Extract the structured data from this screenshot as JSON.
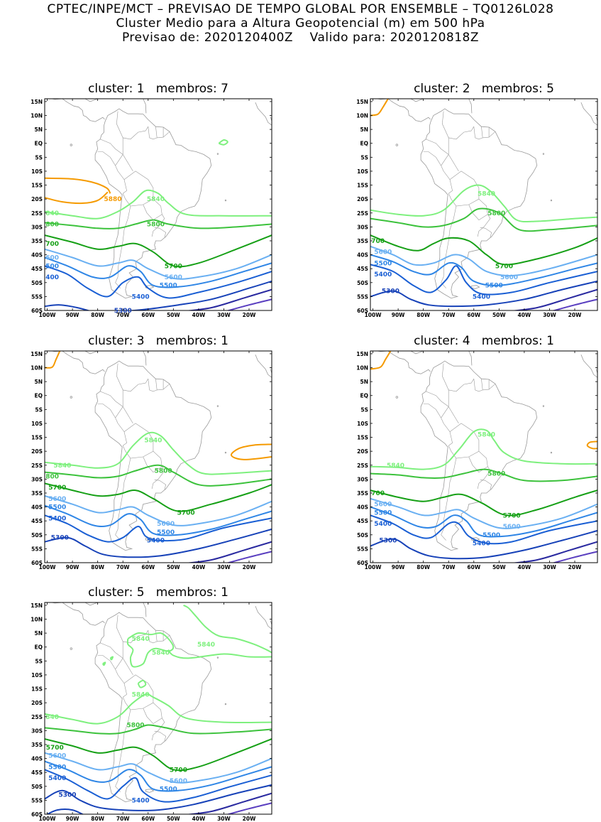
{
  "header": {
    "line1": "CPTEC/INPE/MCT – PREVISAO DE TEMPO GLOBAL POR ENSEMBLE – TQ0126L028",
    "line2": "Cluster Medio para a Altura Geopotencial (m) em 500 hPa",
    "line3": "Previsao de: 2020120400Z    Valido para: 2020120818Z"
  },
  "axes": {
    "lat_labels": [
      "15N",
      "10N",
      "5N",
      "EQ",
      "5S",
      "10S",
      "15S",
      "20S",
      "25S",
      "30S",
      "35S",
      "40S",
      "45S",
      "50S",
      "55S",
      "60S"
    ],
    "lon_labels": [
      "100W",
      "90W",
      "80W",
      "70W",
      "60W",
      "50W",
      "40W",
      "30W",
      "20W"
    ]
  },
  "colors": {
    "c5880": "#f59a00",
    "c5840": "#7ef07e",
    "c5800": "#3cc23c",
    "c5700": "#16a016",
    "c5600": "#6ab0f2",
    "c5500": "#2f86e6",
    "c5400": "#1a5fd4",
    "c5300": "#1742b8",
    "c5200": "#2a2aa0",
    "c5100": "#5a3fc0",
    "coast": "#9a9a9a"
  },
  "panels": [
    {
      "title": "cluster: 1   membros: 7",
      "labels": [
        {
          "text": "5880",
          "lon": -74,
          "lat": -20,
          "lev": "c5880"
        },
        {
          "text": "5840",
          "lon": -57,
          "lat": -20,
          "lev": "c5840"
        },
        {
          "text": "840",
          "lon": -98,
          "lat": -25,
          "lev": "c5840"
        },
        {
          "text": "5800",
          "lon": -57,
          "lat": -29,
          "lev": "c5800"
        },
        {
          "text": "800",
          "lon": -98,
          "lat": -29,
          "lev": "c5800"
        },
        {
          "text": "700",
          "lon": -98,
          "lat": -36,
          "lev": "c5700"
        },
        {
          "text": "5700",
          "lon": -50,
          "lat": -44,
          "lev": "c5700"
        },
        {
          "text": "600",
          "lon": -98,
          "lat": -41,
          "lev": "c5600"
        },
        {
          "text": "5600",
          "lon": -50,
          "lat": -48,
          "lev": "c5600"
        },
        {
          "text": "500",
          "lon": -98,
          "lat": -44,
          "lev": "c5500"
        },
        {
          "text": "5500",
          "lon": -52,
          "lat": -51,
          "lev": "c5500"
        },
        {
          "text": "400",
          "lon": -98,
          "lat": -48,
          "lev": "c5400"
        },
        {
          "text": "5400",
          "lon": -63,
          "lat": -55,
          "lev": "c5400"
        },
        {
          "text": "5300",
          "lon": -70,
          "lat": -60,
          "lev": "c5300"
        }
      ]
    },
    {
      "title": "cluster: 2   membros: 5",
      "labels": [
        {
          "text": "5840",
          "lon": -55,
          "lat": -18,
          "lev": "c5840"
        },
        {
          "text": "5800",
          "lon": -51,
          "lat": -25,
          "lev": "c5800"
        },
        {
          "text": "700",
          "lon": -98,
          "lat": -35,
          "lev": "c5700"
        },
        {
          "text": "5700",
          "lon": -48,
          "lat": -44,
          "lev": "c5700"
        },
        {
          "text": "5600",
          "lon": -96,
          "lat": -39,
          "lev": "c5600"
        },
        {
          "text": "5600",
          "lon": -46,
          "lat": -48,
          "lev": "c5600"
        },
        {
          "text": "5500",
          "lon": -96,
          "lat": -43,
          "lev": "c5500"
        },
        {
          "text": "5500",
          "lon": -52,
          "lat": -51,
          "lev": "c5500"
        },
        {
          "text": "5400",
          "lon": -96,
          "lat": -47,
          "lev": "c5400"
        },
        {
          "text": "5400",
          "lon": -57,
          "lat": -55,
          "lev": "c5400"
        },
        {
          "text": "5300",
          "lon": -93,
          "lat": -53,
          "lev": "c5300"
        }
      ]
    },
    {
      "title": "cluster: 3   membros: 1",
      "labels": [
        {
          "text": "5840",
          "lon": -58,
          "lat": -16,
          "lev": "c5840"
        },
        {
          "text": "5840",
          "lon": -94,
          "lat": -25,
          "lev": "c5840"
        },
        {
          "text": "5800",
          "lon": -54,
          "lat": -27,
          "lev": "c5800"
        },
        {
          "text": "800",
          "lon": -98,
          "lat": -29,
          "lev": "c5800"
        },
        {
          "text": "5700",
          "lon": -96,
          "lat": -33,
          "lev": "c5700"
        },
        {
          "text": "5700",
          "lon": -45,
          "lat": -42,
          "lev": "c5700"
        },
        {
          "text": "5600",
          "lon": -96,
          "lat": -37,
          "lev": "c5600"
        },
        {
          "text": "5600",
          "lon": -53,
          "lat": -46,
          "lev": "c5600"
        },
        {
          "text": "5500",
          "lon": -96,
          "lat": -40,
          "lev": "c5500"
        },
        {
          "text": "5500",
          "lon": -53,
          "lat": -49,
          "lev": "c5500"
        },
        {
          "text": "5400",
          "lon": -96,
          "lat": -44,
          "lev": "c5400"
        },
        {
          "text": "5400",
          "lon": -57,
          "lat": -52,
          "lev": "c5400"
        },
        {
          "text": "5300",
          "lon": -95,
          "lat": -51,
          "lev": "c5300"
        }
      ]
    },
    {
      "title": "cluster: 4   membros: 1",
      "labels": [
        {
          "text": "5840",
          "lon": -55,
          "lat": -14,
          "lev": "c5840"
        },
        {
          "text": "5840",
          "lon": -91,
          "lat": -25,
          "lev": "c5840"
        },
        {
          "text": "5800",
          "lon": -51,
          "lat": -28,
          "lev": "c5800"
        },
        {
          "text": "700",
          "lon": -98,
          "lat": -35,
          "lev": "c5700"
        },
        {
          "text": "5700",
          "lon": -45,
          "lat": -43,
          "lev": "c5700"
        },
        {
          "text": "5600",
          "lon": -96,
          "lat": -39,
          "lev": "c5600"
        },
        {
          "text": "5600",
          "lon": -45,
          "lat": -47,
          "lev": "c5600"
        },
        {
          "text": "5500",
          "lon": -96,
          "lat": -42,
          "lev": "c5500"
        },
        {
          "text": "5500",
          "lon": -53,
          "lat": -50,
          "lev": "c5500"
        },
        {
          "text": "5400",
          "lon": -96,
          "lat": -46,
          "lev": "c5400"
        },
        {
          "text": "5400",
          "lon": -57,
          "lat": -53,
          "lev": "c5400"
        },
        {
          "text": "5300",
          "lon": -94,
          "lat": -52,
          "lev": "c5300"
        }
      ]
    },
    {
      "title": "cluster: 5   membros: 1",
      "labels": [
        {
          "text": "5840",
          "lon": -63,
          "lat": 3,
          "lev": "c5840"
        },
        {
          "text": "5840",
          "lon": -55,
          "lat": -2,
          "lev": "c5840"
        },
        {
          "text": "5840",
          "lon": -37,
          "lat": 1,
          "lev": "c5840"
        },
        {
          "text": "5840",
          "lon": -63,
          "lat": -17,
          "lev": "c5840"
        },
        {
          "text": "840",
          "lon": -98,
          "lat": -25,
          "lev": "c5840"
        },
        {
          "text": "5800",
          "lon": -65,
          "lat": -28,
          "lev": "c5800"
        },
        {
          "text": "5700",
          "lon": -97,
          "lat": -36,
          "lev": "c5700"
        },
        {
          "text": "5700",
          "lon": -48,
          "lat": -44,
          "lev": "c5700"
        },
        {
          "text": "5600",
          "lon": -96,
          "lat": -39,
          "lev": "c5600"
        },
        {
          "text": "5600",
          "lon": -48,
          "lat": -48,
          "lev": "c5600"
        },
        {
          "text": "5500",
          "lon": -96,
          "lat": -43,
          "lev": "c5500"
        },
        {
          "text": "5500",
          "lon": -52,
          "lat": -51,
          "lev": "c5500"
        },
        {
          "text": "5400",
          "lon": -96,
          "lat": -47,
          "lev": "c5400"
        },
        {
          "text": "5400",
          "lon": -63,
          "lat": -55,
          "lev": "c5400"
        },
        {
          "text": "5300",
          "lon": -92,
          "lat": -53,
          "lev": "c5300"
        }
      ]
    }
  ]
}
